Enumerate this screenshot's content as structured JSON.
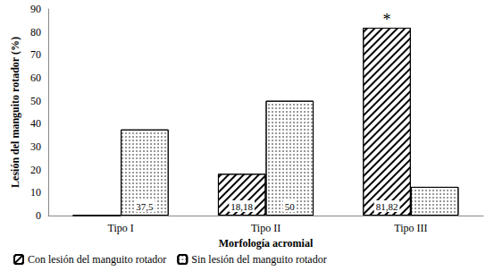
{
  "chart_data": {
    "type": "bar",
    "x_label": "Morfología acromial",
    "y_label": "Lesión del manguito rotador (%)",
    "categories": [
      "Tipo I",
      "Tipo II",
      "Tipo III"
    ],
    "series": [
      {
        "name": "Con lesión del manguito rotador",
        "color": "#000000",
        "marker": "hatch",
        "values": [
          0,
          18.18,
          81.82
        ],
        "value_labels": [
          null,
          "18,18",
          "81,82"
        ]
      },
      {
        "name": "Sin lesión del manguito rotador",
        "color": "#000000",
        "marker": "dots",
        "values": [
          37.5,
          50,
          12.5
        ],
        "value_labels": [
          "37,5",
          "50",
          null
        ]
      }
    ],
    "annotations": [
      {
        "text": "*",
        "category": "Tipo III",
        "series": "Con lesión del manguito rotador"
      }
    ],
    "ylim": [
      0,
      90
    ],
    "yticks": [
      0,
      10,
      20,
      30,
      40,
      50,
      60,
      70,
      80,
      90
    ],
    "grid": false,
    "legend": "bottom",
    "data_labels": true
  }
}
